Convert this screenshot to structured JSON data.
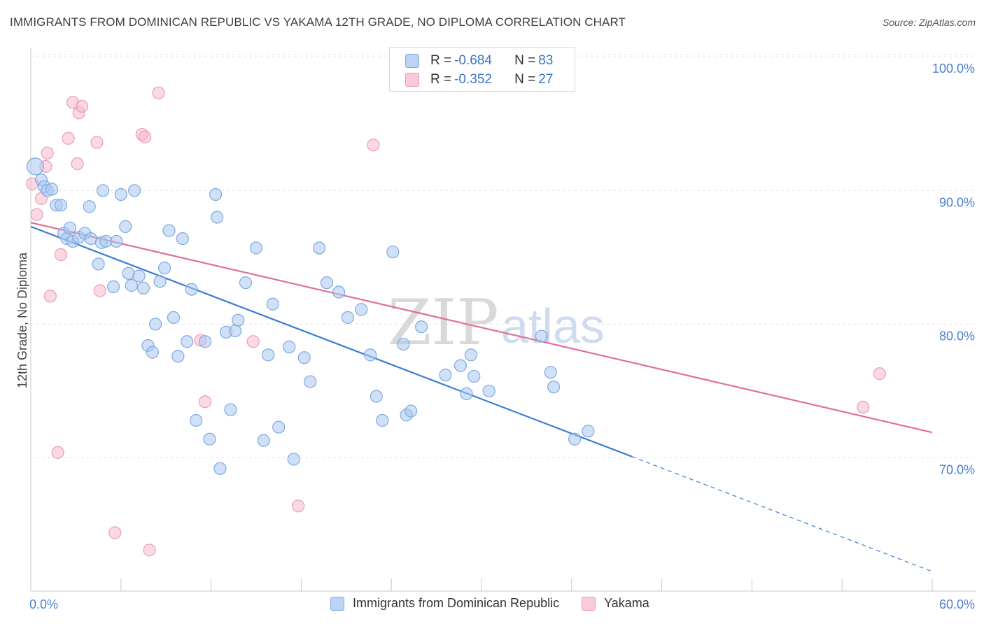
{
  "title": "IMMIGRANTS FROM DOMINICAN REPUBLIC VS YAKAMA 12TH GRADE, NO DIPLOMA CORRELATION CHART",
  "source": "Source: ZipAtlas.com",
  "watermark": {
    "zip": "ZIP",
    "atlas": "atlas"
  },
  "legend": {
    "rows": [
      {
        "r_label": "R = ",
        "r_value": "-0.684",
        "n_label": "N = ",
        "n_value": "83",
        "color": "#a8c8f0"
      },
      {
        "r_label": "R = ",
        "r_value": "-0.352",
        "n_label": "N = ",
        "n_value": "27",
        "color": "#f4b8cb"
      }
    ]
  },
  "bottom_legend": {
    "series1": "Immigrants from Dominican Republic",
    "series2": "Yakama"
  },
  "chart_data": {
    "type": "scatter",
    "title": "IMMIGRANTS FROM DOMINICAN REPUBLIC VS YAKAMA 12TH GRADE, NO DIPLOMA CORRELATION CHART",
    "xlabel": "",
    "ylabel": "12th Grade, No Diploma",
    "xlim": [
      0,
      60
    ],
    "ylim": [
      60.5,
      103
    ],
    "x_tick_labels": [
      "0.0%",
      "60.0%"
    ],
    "y_ticks": [
      70,
      80,
      90,
      100
    ],
    "y_tick_labels": [
      "70.0%",
      "80.0%",
      "90.0%",
      "100.0%"
    ],
    "grid": true,
    "colors": {
      "blue": "#4a7fd0",
      "blue_fill": "#a8c8f0",
      "pink": "#e0709a",
      "pink_fill": "#f4b8cb"
    },
    "series": [
      {
        "name": "Immigrants from Dominican Republic",
        "color": "#4a7fd0",
        "points": [
          [
            0.3,
            91.8
          ],
          [
            0.7,
            90.8
          ],
          [
            0.9,
            90.3
          ],
          [
            1.1,
            90.0
          ],
          [
            1.4,
            90.1
          ],
          [
            1.7,
            88.9
          ],
          [
            2.0,
            88.9
          ],
          [
            2.2,
            86.8
          ],
          [
            2.4,
            86.4
          ],
          [
            2.6,
            87.2
          ],
          [
            2.8,
            86.2
          ],
          [
            3.2,
            86.5
          ],
          [
            3.6,
            86.8
          ],
          [
            3.9,
            88.8
          ],
          [
            4.0,
            86.4
          ],
          [
            4.5,
            84.5
          ],
          [
            4.7,
            86.1
          ],
          [
            4.8,
            90.0
          ],
          [
            5.0,
            86.2
          ],
          [
            5.5,
            82.8
          ],
          [
            5.7,
            86.2
          ],
          [
            6.0,
            89.7
          ],
          [
            6.3,
            87.3
          ],
          [
            6.5,
            83.8
          ],
          [
            6.7,
            82.9
          ],
          [
            6.9,
            90.0
          ],
          [
            7.2,
            83.6
          ],
          [
            7.5,
            82.7
          ],
          [
            7.8,
            78.4
          ],
          [
            8.1,
            77.9
          ],
          [
            8.3,
            80.0
          ],
          [
            8.6,
            83.2
          ],
          [
            8.9,
            84.2
          ],
          [
            9.2,
            87.0
          ],
          [
            9.5,
            80.5
          ],
          [
            9.8,
            77.6
          ],
          [
            10.1,
            86.4
          ],
          [
            10.4,
            78.7
          ],
          [
            10.7,
            82.6
          ],
          [
            11.0,
            72.8
          ],
          [
            11.6,
            78.7
          ],
          [
            11.9,
            71.4
          ],
          [
            12.3,
            89.7
          ],
          [
            12.4,
            88.0
          ],
          [
            12.6,
            69.2
          ],
          [
            13.0,
            79.4
          ],
          [
            13.3,
            73.6
          ],
          [
            13.6,
            79.5
          ],
          [
            13.8,
            80.3
          ],
          [
            14.3,
            83.1
          ],
          [
            15.0,
            85.7
          ],
          [
            15.5,
            71.3
          ],
          [
            15.8,
            77.7
          ],
          [
            16.1,
            81.5
          ],
          [
            16.5,
            72.3
          ],
          [
            17.2,
            78.3
          ],
          [
            17.5,
            69.9
          ],
          [
            18.2,
            77.5
          ],
          [
            18.6,
            75.7
          ],
          [
            19.2,
            85.7
          ],
          [
            19.7,
            83.1
          ],
          [
            20.5,
            82.4
          ],
          [
            21.1,
            80.5
          ],
          [
            22.0,
            81.1
          ],
          [
            22.6,
            77.7
          ],
          [
            23.0,
            74.6
          ],
          [
            23.4,
            72.8
          ],
          [
            24.1,
            85.4
          ],
          [
            24.8,
            78.5
          ],
          [
            25.0,
            73.2
          ],
          [
            25.3,
            73.5
          ],
          [
            26.0,
            79.8
          ],
          [
            27.6,
            76.2
          ],
          [
            28.6,
            76.9
          ],
          [
            29.0,
            74.8
          ],
          [
            29.3,
            77.7
          ],
          [
            29.5,
            76.1
          ],
          [
            30.5,
            75.0
          ],
          [
            34.0,
            79.1
          ],
          [
            34.6,
            76.4
          ],
          [
            34.8,
            75.3
          ],
          [
            36.2,
            71.4
          ],
          [
            37.1,
            72.0
          ]
        ],
        "trend": {
          "x1": 0,
          "y1": 87.3,
          "x2": 40,
          "y2": 70.1,
          "dash_to_x": 60,
          "dash_to_y": 61.5
        }
      },
      {
        "name": "Yakama",
        "color": "#e0709a",
        "points": [
          [
            0.1,
            90.5
          ],
          [
            0.4,
            88.2
          ],
          [
            0.7,
            89.4
          ],
          [
            1.0,
            91.8
          ],
          [
            1.1,
            92.8
          ],
          [
            1.3,
            82.1
          ],
          [
            1.8,
            70.4
          ],
          [
            2.0,
            85.2
          ],
          [
            2.5,
            93.9
          ],
          [
            2.8,
            96.6
          ],
          [
            3.1,
            92.0
          ],
          [
            3.2,
            95.8
          ],
          [
            3.4,
            96.3
          ],
          [
            4.4,
            93.6
          ],
          [
            4.6,
            82.5
          ],
          [
            5.6,
            64.4
          ],
          [
            7.4,
            94.2
          ],
          [
            7.6,
            94.0
          ],
          [
            7.9,
            63.1
          ],
          [
            8.5,
            97.3
          ],
          [
            11.3,
            78.8
          ],
          [
            11.6,
            74.2
          ],
          [
            14.8,
            78.7
          ],
          [
            17.8,
            66.4
          ],
          [
            22.8,
            93.4
          ],
          [
            55.4,
            73.8
          ],
          [
            56.5,
            76.3
          ]
        ],
        "trend": {
          "x1": 0,
          "y1": 87.6,
          "x2": 60,
          "y2": 71.9
        }
      }
    ]
  }
}
